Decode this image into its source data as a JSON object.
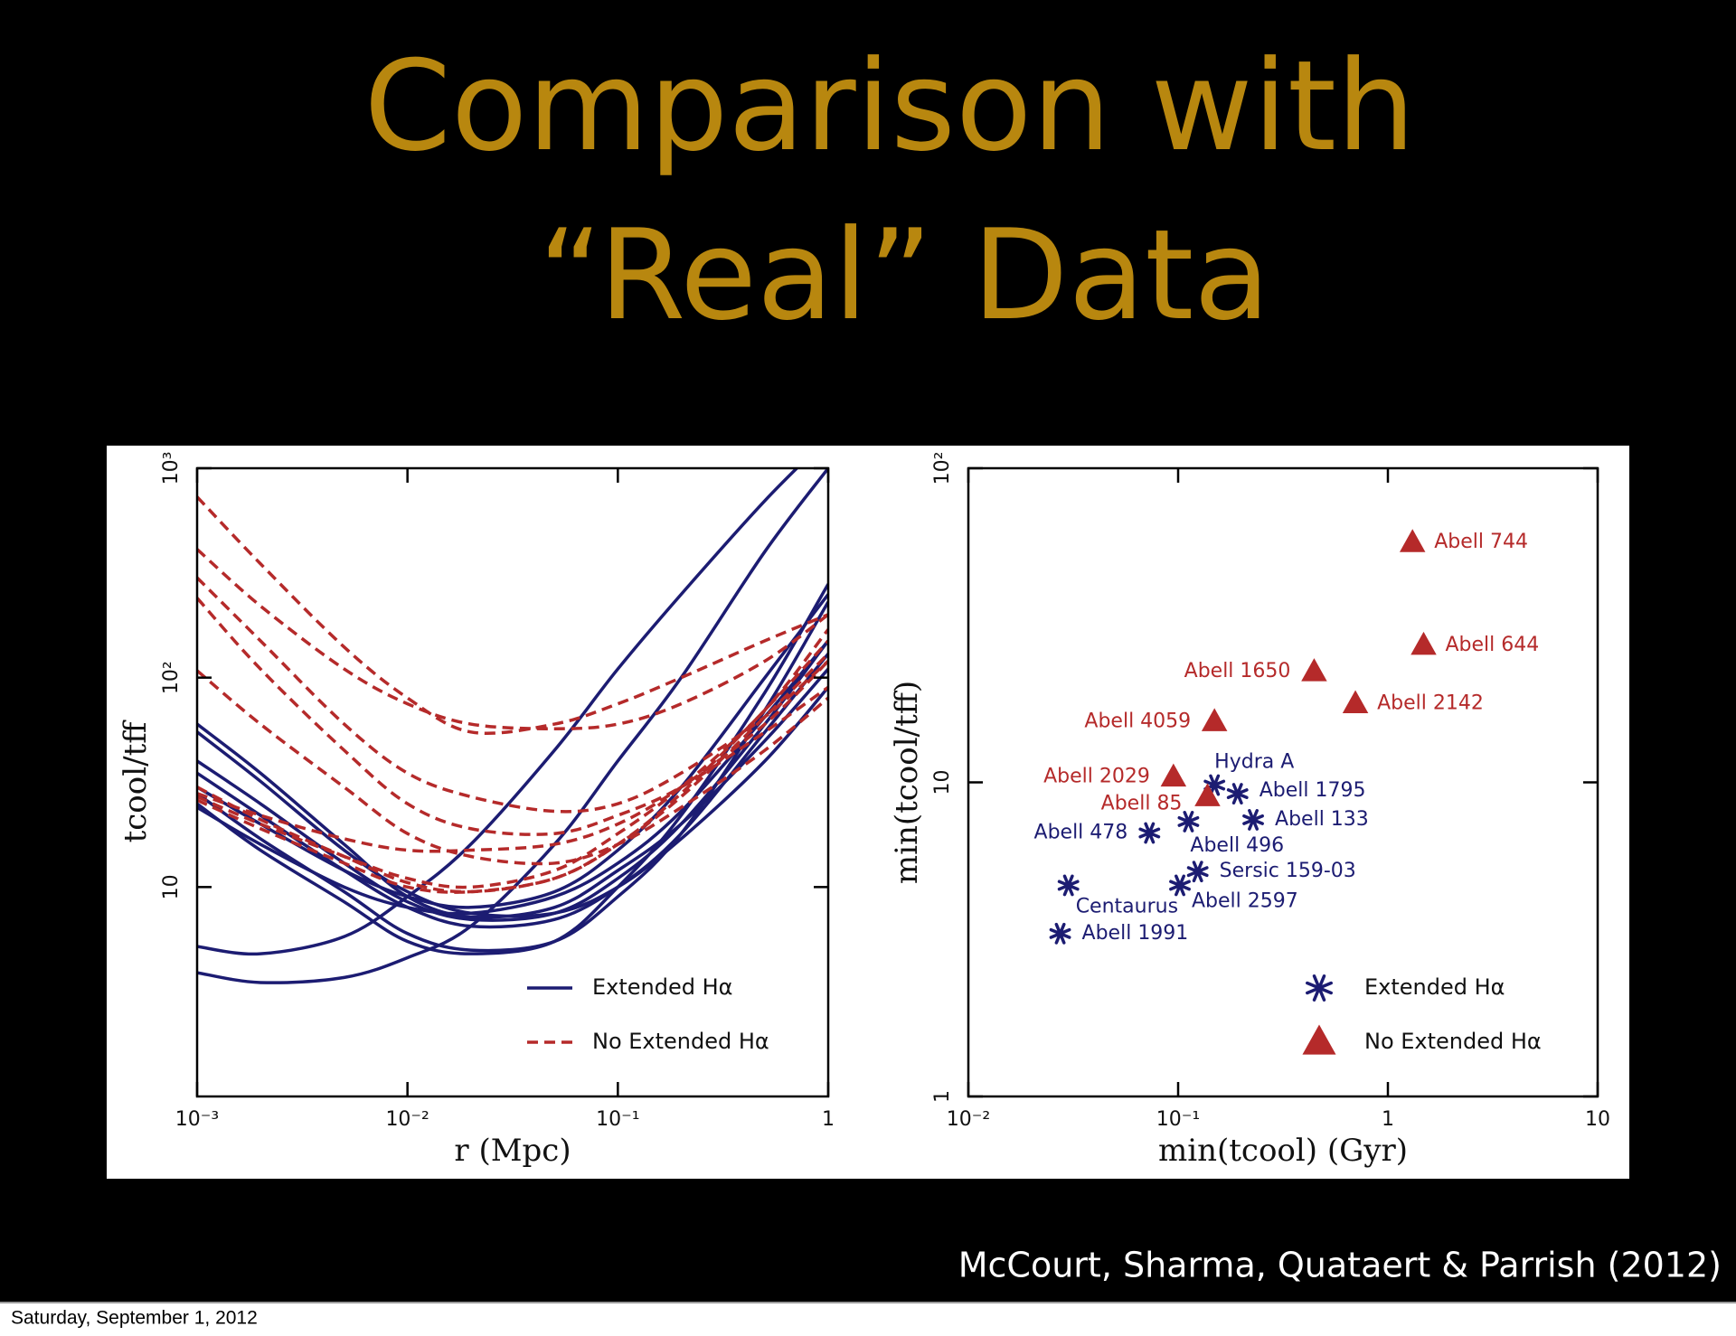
{
  "slide": {
    "title_lines": [
      "Comparison with",
      "“Real” Data"
    ],
    "citation": "McCourt, Sharma, Quataert & Parrish (2012)",
    "date": "Saturday, September 1, 2012"
  },
  "chart_data": [
    {
      "type": "line",
      "xlabel": "r (Mpc)",
      "ylabel": "tcool/tff",
      "xscale": "log",
      "yscale": "log",
      "xlim": [
        0.001,
        1
      ],
      "ylim": [
        1,
        1000
      ],
      "xticks": [
        {
          "value": 0.001,
          "label": "10⁻³"
        },
        {
          "value": 0.01,
          "label": "10⁻²"
        },
        {
          "value": 0.1,
          "label": "10⁻¹"
        },
        1
      ],
      "yticks": [
        10,
        {
          "value": 100,
          "label": "10²"
        },
        {
          "value": 1000,
          "label": "10³"
        }
      ],
      "legend": "lower right",
      "x": [
        0.001,
        0.002,
        0.005,
        0.01,
        0.02,
        0.05,
        0.1,
        0.2,
        0.5,
        1
      ],
      "series": [
        {
          "name": "Extended Hα",
          "color": "#1c1c72",
          "linestyle": "solid",
          "lines": [
            [
              5.2,
              4.8,
              5.8,
              9,
              16,
              45,
              110,
              250,
              700,
              1400
            ],
            [
              3.9,
              3.5,
              3.7,
              4.6,
              6.5,
              16,
              40,
              100,
              400,
              1000
            ],
            [
              60,
              35,
              16,
              9,
              7.2,
              8,
              12,
              20,
              50,
              110
            ],
            [
              55,
              32,
              15,
              9.5,
              7.5,
              7.5,
              10,
              17,
              40,
              90
            ],
            [
              40,
              25,
              13,
              8.5,
              7,
              7.5,
              11,
              20,
              60,
              150
            ],
            [
              35,
              22,
              12,
              8,
              6.5,
              7,
              10,
              18,
              55,
              130
            ],
            [
              28,
              17,
              9.5,
              6,
              5,
              5.5,
              9,
              18,
              70,
              230
            ],
            [
              25,
              15,
              8.5,
              5.5,
              4.8,
              5.5,
              10,
              22,
              85,
              280
            ],
            [
              30,
              20,
              12,
              9,
              8,
              9.5,
              15,
              30,
              100,
              250
            ],
            [
              24,
              16,
              10,
              8,
              7.5,
              9,
              13,
              23,
              65,
              150
            ]
          ]
        },
        {
          "name": "No Extended Hα",
          "color": "#b52a2a",
          "linestyle": "dashed",
          "lines": [
            [
              730,
              350,
              140,
              80,
              55,
              60,
              75,
              100,
              150,
              200
            ],
            [
              410,
              220,
              110,
              75,
              60,
              57,
              60,
              75,
              120,
              200
            ],
            [
              300,
              150,
              60,
              35,
              27,
              23,
              25,
              35,
              65,
              120
            ],
            [
              240,
              110,
              45,
              25,
              19,
              18,
              22,
              30,
              55,
              90
            ],
            [
              108,
              60,
              30,
              18,
              14,
              13,
              16,
              24,
              45,
              80
            ],
            [
              28,
              22,
              17,
              15,
              15,
              16,
              20,
              30,
              60,
              120
            ],
            [
              26,
              19,
              13,
              10,
              9.5,
              11,
              16,
              28,
              70,
              150
            ],
            [
              30,
              21,
              14,
              10.5,
              9.5,
              11,
              16,
              27,
              65,
              130
            ],
            [
              27,
              20,
              14,
              11,
              10,
              12,
              18,
              30,
              70,
              170
            ]
          ]
        }
      ]
    },
    {
      "type": "scatter",
      "xlabel": "min(tcool) (Gyr)",
      "ylabel": "min(tcool/tff)",
      "xscale": "log",
      "yscale": "log",
      "xlim": [
        0.01,
        10
      ],
      "ylim": [
        1,
        100
      ],
      "xticks": [
        {
          "value": 0.01,
          "label": "10⁻²"
        },
        {
          "value": 0.1,
          "label": "10⁻¹"
        },
        1,
        10
      ],
      "yticks": [
        1,
        10,
        {
          "value": 100,
          "label": "10²"
        }
      ],
      "legend": "lower right",
      "series": [
        {
          "name": "Extended Hα",
          "color": "#1c1c72",
          "marker": "asterisk",
          "labels": [
            "Hydra A",
            "Abell 1795",
            "Abell 478",
            "Abell 496",
            "Abell 133",
            "Sersic 159-03",
            "Abell 2597",
            "Centaurus",
            "Abell 1991"
          ],
          "x": [
            0.149,
            0.192,
            0.073,
            0.112,
            0.228,
            0.124,
            0.102,
            0.03,
            0.0274
          ],
          "values": [
            9.8,
            9.2,
            6.9,
            7.5,
            7.6,
            5.2,
            4.7,
            4.7,
            3.3
          ]
        },
        {
          "name": "No Extended Hα",
          "color": "#b52a2a",
          "marker": "triangle",
          "labels": [
            "Abell 744",
            "Abell 644",
            "Abell 1650",
            "Abell 2142",
            "Abell 4059",
            "Abell 2029",
            "Abell 85"
          ],
          "x": [
            1.31,
            1.48,
            0.445,
            0.7,
            0.149,
            0.095,
            0.138
          ],
          "values": [
            58,
            27.3,
            22.5,
            17.8,
            15.6,
            10.4,
            9.0
          ]
        }
      ]
    }
  ]
}
